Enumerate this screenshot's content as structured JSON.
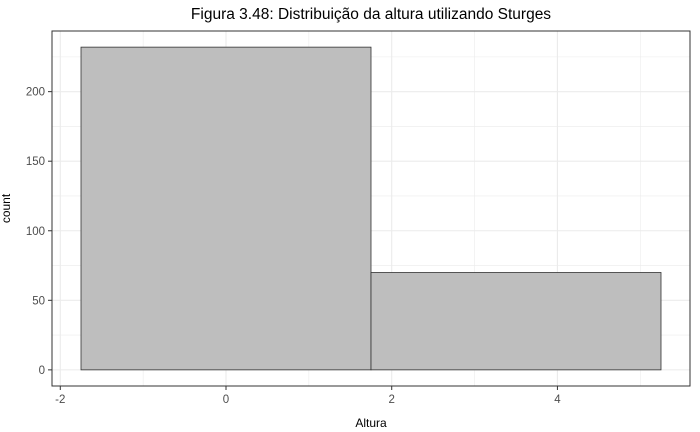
{
  "chart_data": {
    "type": "bar",
    "title": "Figura 3.48: Distribuição da altura utilizando Sturges",
    "xlabel": "Altura",
    "ylabel": "count",
    "bins": [
      {
        "x_start": -1.75,
        "x_end": 1.75,
        "count": 232
      },
      {
        "x_start": 1.75,
        "x_end": 5.25,
        "count": 70
      }
    ],
    "xlim": [
      -2.1,
      5.6
    ],
    "ylim": [
      -11.6,
      243.6
    ],
    "x_ticks": [
      "-2",
      "0",
      "2",
      "4"
    ],
    "y_ticks": [
      "0",
      "50",
      "100",
      "150",
      "200"
    ],
    "bar_fill": "#bebebe",
    "bar_stroke": "#333333",
    "grid": true,
    "grid_color": "#ebebeb",
    "panel_border_color": "#333333"
  }
}
